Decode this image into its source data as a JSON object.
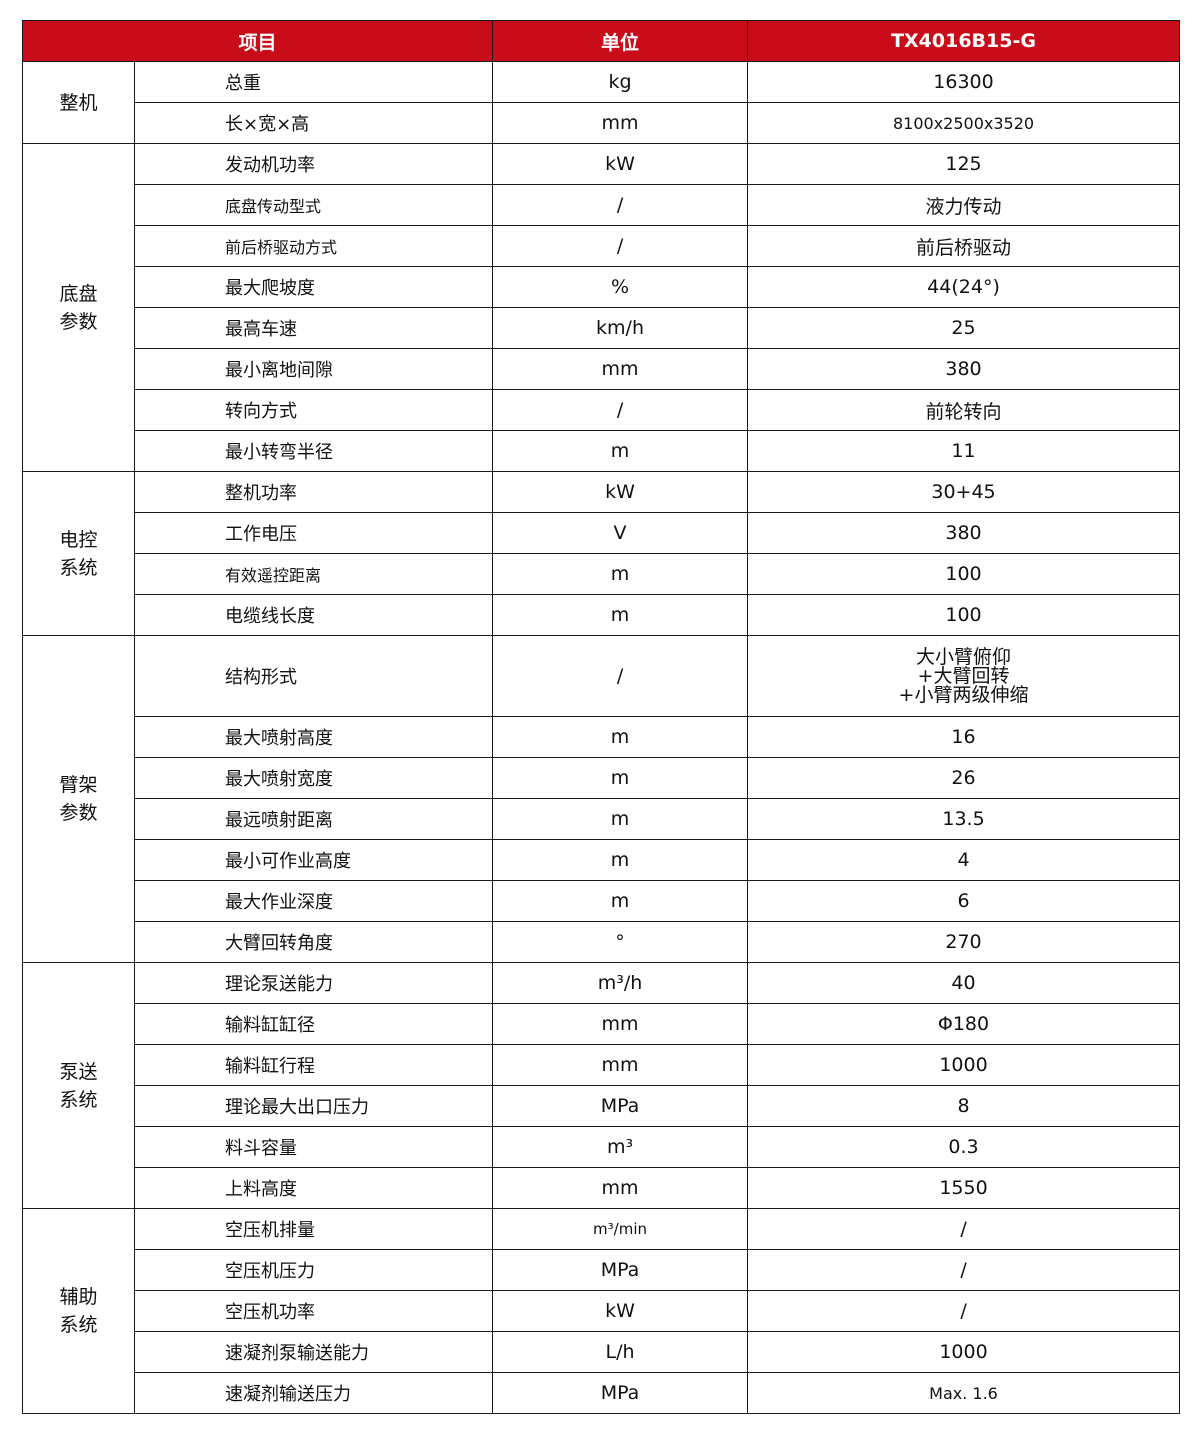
{
  "header": {
    "item": "项目",
    "unit": "单位",
    "model": "TX4016B15-G"
  },
  "colors": {
    "header_bg": "#c90c1a",
    "header_text": "#ffffff",
    "border": "#1a1a1a"
  },
  "groups": [
    {
      "name": [
        "整机"
      ],
      "rows": [
        {
          "item": "总重",
          "unit": "kg",
          "value": "16300"
        },
        {
          "item": "长×宽×高",
          "unit": "mm",
          "value": "8100x2500x3520"
        }
      ]
    },
    {
      "name": [
        "底盘",
        "参数"
      ],
      "rows": [
        {
          "item": "发动机功率",
          "unit": "kW",
          "value": "125"
        },
        {
          "item": "底盘传动型式",
          "unit": "/",
          "value": "液力传动"
        },
        {
          "item": "前后桥驱动方式",
          "unit": "/",
          "value": "前后桥驱动"
        },
        {
          "item": "最大爬坡度",
          "unit": "%",
          "value": "44(24°)"
        },
        {
          "item": "最高车速",
          "unit": "km/h",
          "value": "25"
        },
        {
          "item": "最小离地间隙",
          "unit": "mm",
          "value": "380"
        },
        {
          "item": "转向方式",
          "unit": "/",
          "value": "前轮转向"
        },
        {
          "item": "最小转弯半径",
          "unit": "m",
          "value": "11"
        }
      ]
    },
    {
      "name": [
        "电控",
        "系统"
      ],
      "rows": [
        {
          "item": "整机功率",
          "unit": "kW",
          "value": "30+45"
        },
        {
          "item": "工作电压",
          "unit": "V",
          "value": "380"
        },
        {
          "item": "有效遥控距离",
          "unit": "m",
          "value": "100"
        },
        {
          "item": "电缆线长度",
          "unit": "m",
          "value": "100"
        }
      ]
    },
    {
      "name": [
        "臂架",
        "参数"
      ],
      "rows": [
        {
          "item": "结构形式",
          "unit": "/",
          "value_lines": [
            "大小臂俯仰",
            "+大臂回转",
            "+小臂两级伸缩"
          ]
        },
        {
          "item": "最大喷射高度",
          "unit": "m",
          "value": "16"
        },
        {
          "item": "最大喷射宽度",
          "unit": "m",
          "value": "26"
        },
        {
          "item": "最远喷射距离",
          "unit": "m",
          "value": "13.5"
        },
        {
          "item": "最小可作业高度",
          "unit": "m",
          "value": "4"
        },
        {
          "item": "最大作业深度",
          "unit": "m",
          "value": "6"
        },
        {
          "item": "大臂回转角度",
          "unit": "°",
          "value": "270"
        }
      ]
    },
    {
      "name": [
        "泵送",
        "系统"
      ],
      "rows": [
        {
          "item": "理论泵送能力",
          "unit": "m³/h",
          "value": "40"
        },
        {
          "item": "输料缸缸径",
          "unit": "mm",
          "value": "Φ180"
        },
        {
          "item": "输料缸行程",
          "unit": "mm",
          "value": "1000"
        },
        {
          "item": "理论最大出口压力",
          "unit": "MPa",
          "value": "8"
        },
        {
          "item": "料斗容量",
          "unit": "m³",
          "value": "0.3"
        },
        {
          "item": "上料高度",
          "unit": "mm",
          "value": "1550"
        }
      ]
    },
    {
      "name": [
        "辅助",
        "系统"
      ],
      "rows": [
        {
          "item": "空压机排量",
          "unit": "m³/min",
          "value": "/"
        },
        {
          "item": "空压机压力",
          "unit": "MPa",
          "value": "/"
        },
        {
          "item": "空压机功率",
          "unit": "kW",
          "value": "/"
        },
        {
          "item": "速凝剂泵输送能力",
          "unit": "L/h",
          "value": "1000"
        },
        {
          "item": "速凝剂输送压力",
          "unit": "MPa",
          "value": "Max. 1.6"
        }
      ]
    }
  ]
}
